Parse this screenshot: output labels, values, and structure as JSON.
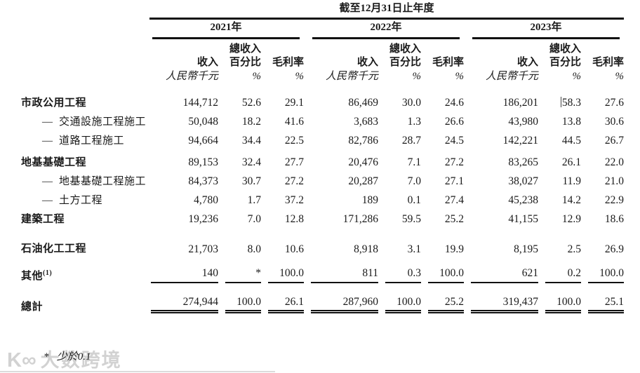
{
  "table": {
    "title": "截至12月31日止年度",
    "year_groups": [
      {
        "year": "2021年"
      },
      {
        "year": "2022年"
      },
      {
        "year": "2023年"
      }
    ],
    "col_headers": {
      "revenue": "收入",
      "revenue_unit": "人民幣千元",
      "pct_top": "總收入",
      "pct": "百分比",
      "pct_unit": "%",
      "gpm": "毛利率",
      "gpm_unit": "%"
    },
    "rows": [
      {
        "label": "市政公用工程",
        "bold": true,
        "sub": false,
        "underline": false,
        "values": [
          "144,712",
          "52.6",
          "29.1",
          "86,469",
          "30.0",
          "24.6",
          "186,201",
          "58.3",
          "27.6"
        ]
      },
      {
        "label": "—  交通設施工程施工",
        "bold": false,
        "sub": true,
        "underline": false,
        "values": [
          "50,048",
          "18.2",
          "41.6",
          "3,683",
          "1.3",
          "26.6",
          "43,980",
          "13.8",
          "30.6"
        ]
      },
      {
        "label": "—  道路工程施工",
        "bold": false,
        "sub": true,
        "underline": false,
        "values": [
          "94,664",
          "34.4",
          "22.5",
          "82,786",
          "28.7",
          "24.5",
          "142,221",
          "44.5",
          "26.7"
        ]
      },
      {
        "label": "地基基礎工程",
        "bold": true,
        "sub": false,
        "underline": false,
        "values": [
          "89,153",
          "32.4",
          "27.7",
          "20,476",
          "7.1",
          "27.2",
          "83,265",
          "26.1",
          "22.0"
        ]
      },
      {
        "label": "—  地基基礎工程施工",
        "bold": false,
        "sub": true,
        "underline": false,
        "values": [
          "84,373",
          "30.7",
          "27.2",
          "20,287",
          "7.0",
          "27.1",
          "38,027",
          "11.9",
          "21.0"
        ]
      },
      {
        "label": "—  土方工程",
        "bold": false,
        "sub": true,
        "underline": false,
        "values": [
          "4,780",
          "1.7",
          "37.2",
          "189",
          "0.1",
          "27.4",
          "45,238",
          "14.2",
          "22.9"
        ]
      },
      {
        "label": "建築工程",
        "bold": true,
        "sub": false,
        "underline": false,
        "values": [
          "19,236",
          "7.0",
          "12.8",
          "171,286",
          "59.5",
          "25.2",
          "41,155",
          "12.9",
          "18.6"
        ]
      },
      {
        "label": "石油化工工程",
        "bold": true,
        "sub": false,
        "underline": false,
        "values": [
          "21,703",
          "8.0",
          "10.6",
          "8,918",
          "3.1",
          "19.9",
          "8,195",
          "2.5",
          "26.9"
        ]
      },
      {
        "label": "其他",
        "sup": "(1)",
        "bold": true,
        "sub": false,
        "underline": true,
        "values": [
          "140",
          "*",
          "100.0",
          "811",
          "0.3",
          "100.0",
          "621",
          "0.2",
          "100.0"
        ]
      }
    ],
    "total_row": {
      "label": "總計",
      "values": [
        "274,944",
        "100.0",
        "26.1",
        "287,960",
        "100.0",
        "25.2",
        "319,437",
        "100.0",
        "25.1"
      ]
    },
    "footnote": {
      "marker": "*",
      "text": "少於0.1"
    }
  },
  "artifacts": {
    "cursor_before_value": {
      "row_index": 0,
      "value_index": 7
    }
  },
  "watermark": {
    "logo": "K∞",
    "text": "大数跨境"
  }
}
